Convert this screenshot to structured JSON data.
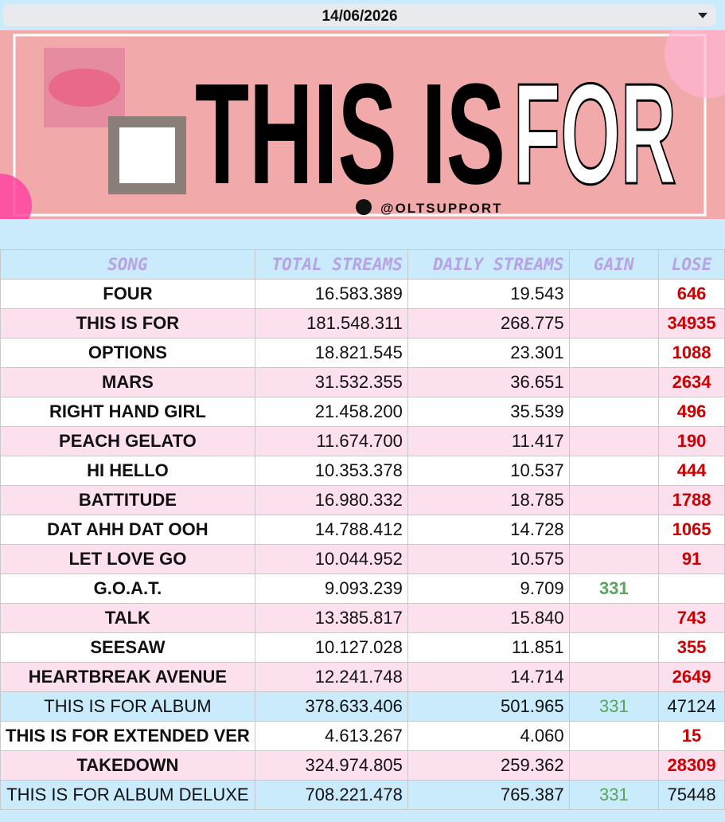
{
  "toolbar": {
    "date": "14/06/2026"
  },
  "banner": {
    "title_black": "THIS IS",
    "title_outline": "FOR",
    "handle": "@OLTSUPPORT"
  },
  "table": {
    "header": [
      "SONG",
      "TOTAL STREAMS",
      "DAILY STREAMS",
      "GAIN",
      "LOSE"
    ],
    "rows": [
      [
        "FOUR",
        "16.583.389",
        "19.543",
        null,
        "646"
      ],
      [
        "THIS IS FOR",
        "181.548.311",
        "268.775",
        null,
        "34935"
      ],
      [
        "OPTIONS",
        "18.821.545",
        "23.301",
        null,
        "1088"
      ],
      [
        "MARS",
        "31.532.355",
        "36.651",
        null,
        "2634"
      ],
      [
        "RIGHT HAND GIRL",
        "21.458.200",
        "35.539",
        null,
        "496"
      ],
      [
        "PEACH GELATO",
        "11.674.700",
        "11.417",
        null,
        "190"
      ],
      [
        "HI HELLO",
        "10.353.378",
        "10.537",
        null,
        "444"
      ],
      [
        "BATTITUDE",
        "16.980.332",
        "18.785",
        null,
        "1788"
      ],
      [
        "DAT AHH DAT OOH",
        "14.788.412",
        "14.728",
        null,
        "1065"
      ],
      [
        "LET LOVE GO",
        "10.044.952",
        "10.575",
        null,
        "91"
      ],
      [
        "G.O.A.T.",
        "9.093.239",
        "9.709",
        "331",
        null
      ],
      [
        "TALK",
        "13.385.817",
        "15.840",
        null,
        "743"
      ],
      [
        "SEESAW",
        "10.127.028",
        "11.851",
        null,
        "355"
      ],
      [
        "HEARTBREAK AVENUE",
        "12.241.748",
        "14.714",
        null,
        "2649"
      ],
      [
        "THIS IS FOR ALBUM",
        "378.633.406",
        "501.965",
        "331",
        "47124"
      ],
      [
        "THIS IS FOR EXTENDED VER",
        "4.613.267",
        "4.060",
        null,
        "15"
      ],
      [
        "TAKEDOWN",
        "324.974.805",
        "259.362",
        null,
        "28309"
      ],
      [
        "THIS IS FOR ALBUM DELUXE",
        "708.221.478",
        "765.387",
        "331",
        "75448"
      ]
    ]
  }
}
